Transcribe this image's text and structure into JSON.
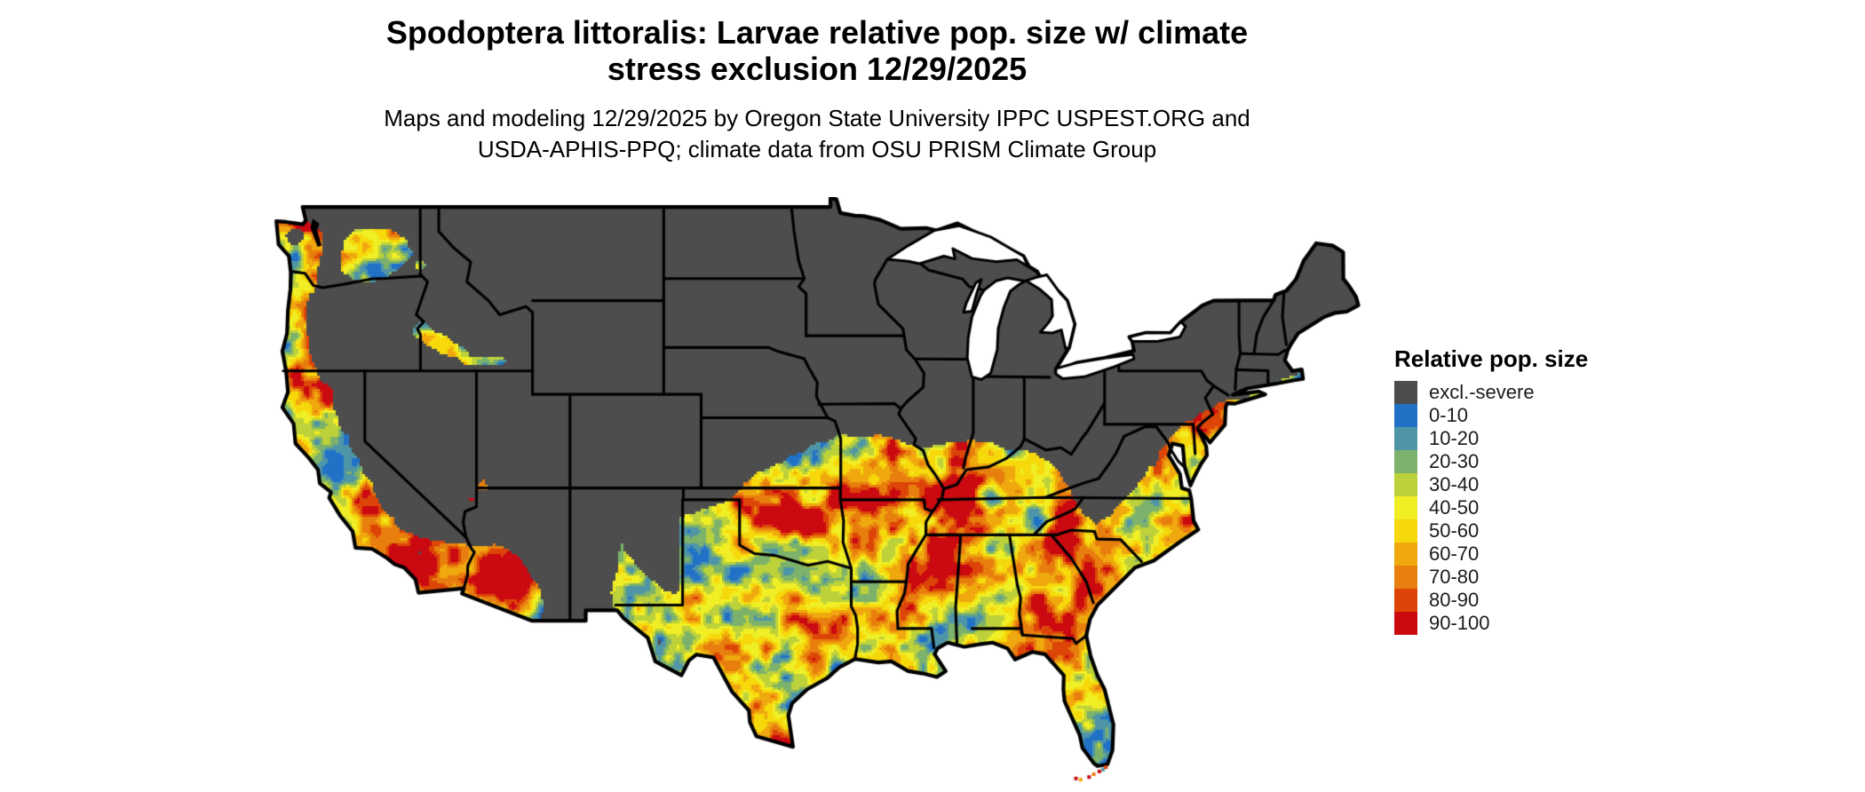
{
  "header": {
    "title": "Spodoptera littoralis: Larvae relative pop. size w/ climate\nstress exclusion 12/29/2025",
    "subtitle": "Maps and modeling 12/29/2025 by Oregon State University IPPC USPEST.ORG and\nUSDA-APHIS-PPQ; climate data from OSU PRISM Climate Group"
  },
  "legend": {
    "title": "Relative pop. size",
    "items": [
      {
        "label": "excl.-severe",
        "color": "#4D4D4D"
      },
      {
        "label": "0-10",
        "color": "#2171C7"
      },
      {
        "label": "10-20",
        "color": "#4E95A8"
      },
      {
        "label": "20-30",
        "color": "#7CB26B"
      },
      {
        "label": "30-40",
        "color": "#BDD13A"
      },
      {
        "label": "40-50",
        "color": "#F0EE25"
      },
      {
        "label": "50-60",
        "color": "#F6D80B"
      },
      {
        "label": "60-70",
        "color": "#F0A80F"
      },
      {
        "label": "70-80",
        "color": "#E87E0D"
      },
      {
        "label": "80-90",
        "color": "#DD4508"
      },
      {
        "label": "90-100",
        "color": "#CA0911"
      }
    ]
  },
  "map": {
    "region": "Contiguous United States",
    "excluded_color": "#4D4D4D",
    "border_color": "#000000",
    "water_color": "#FFFFFF",
    "background_color": "#FFFFFF"
  }
}
